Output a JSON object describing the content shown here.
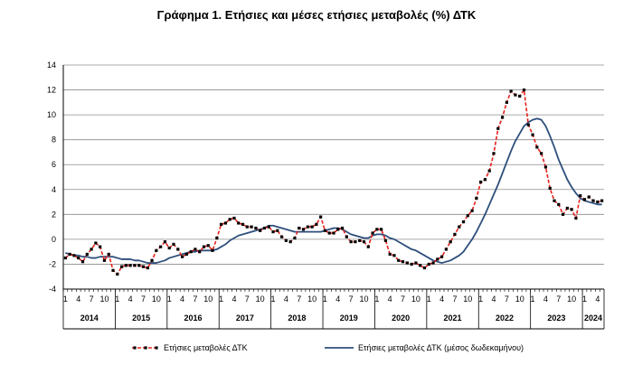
{
  "chart_data": {
    "type": "line",
    "title": "Γράφημα 1. Ετήσιες και μέσες ετήσιες μεταβολές (%) ΔΤΚ",
    "ylim": [
      -4,
      14
    ],
    "yticks": [
      -4,
      -2,
      0,
      2,
      4,
      6,
      8,
      10,
      12,
      14
    ],
    "month_tick_labels": [
      "1",
      "4",
      "7",
      "10"
    ],
    "years": [
      "2014",
      "2015",
      "2016",
      "2017",
      "2018",
      "2019",
      "2020",
      "2021",
      "2022",
      "2023",
      "2024"
    ],
    "grid": true,
    "legend_position": "bottom",
    "series": [
      {
        "name": "Ετήσιες μεταβολές ΔΤΚ",
        "style": "dashed-markers",
        "color": "#e8211d",
        "marker_color": "#000000",
        "values": [
          -1.5,
          -1.2,
          -1.3,
          -1.5,
          -1.8,
          -1.2,
          -0.8,
          -0.3,
          -0.6,
          -1.7,
          -1.2,
          -2.5,
          -2.8,
          -2.2,
          -2.1,
          -2.1,
          -2.1,
          -2.1,
          -2.2,
          -2.3,
          -1.7,
          -0.9,
          -0.6,
          -0.2,
          -0.7,
          -0.4,
          -0.8,
          -1.4,
          -1.2,
          -1.0,
          -0.8,
          -1.0,
          -0.6,
          -0.5,
          -0.9,
          0.1,
          1.2,
          1.3,
          1.6,
          1.7,
          1.3,
          1.2,
          1.0,
          1.0,
          0.9,
          0.7,
          0.9,
          1.0,
          0.6,
          0.7,
          0.2,
          -0.1,
          -0.2,
          0.1,
          0.9,
          0.8,
          1.0,
          1.0,
          1.2,
          1.8,
          0.7,
          0.5,
          0.5,
          0.8,
          0.9,
          0.2,
          -0.2,
          -0.2,
          -0.1,
          -0.2,
          -0.6,
          0.5,
          0.8,
          0.8,
          -0.1,
          -1.2,
          -1.3,
          -1.7,
          -1.8,
          -1.9,
          -2.0,
          -1.9,
          -2.1,
          -2.3,
          -2.0,
          -1.9,
          -1.6,
          -1.4,
          -0.8,
          -0.2,
          0.4,
          1.0,
          1.4,
          1.9,
          2.3,
          3.3,
          4.6,
          4.8,
          5.5,
          6.9,
          8.9,
          9.8,
          11.0,
          11.9,
          11.6,
          11.5,
          12.0,
          9.2,
          8.4,
          7.4,
          6.9,
          5.8,
          4.1,
          3.1,
          2.8,
          2.0,
          2.5,
          2.4,
          1.7,
          3.5,
          3.2,
          3.4,
          3.1,
          3.0,
          3.1
        ]
      },
      {
        "name": "Ετήσιες μεταβολές ΔΤΚ (μέσος δωδεκαμήνου)",
        "style": "solid",
        "color": "#2e4f7c",
        "values": [
          -1.1,
          -1.2,
          -1.3,
          -1.3,
          -1.4,
          -1.4,
          -1.5,
          -1.5,
          -1.4,
          -1.4,
          -1.4,
          -1.4,
          -1.5,
          -1.6,
          -1.6,
          -1.6,
          -1.7,
          -1.7,
          -1.8,
          -1.9,
          -1.9,
          -1.9,
          -1.8,
          -1.7,
          -1.5,
          -1.4,
          -1.3,
          -1.2,
          -1.1,
          -1.0,
          -1.0,
          -0.9,
          -0.9,
          -0.9,
          -0.9,
          -0.8,
          -0.6,
          -0.4,
          -0.1,
          0.1,
          0.3,
          0.4,
          0.5,
          0.6,
          0.7,
          0.8,
          0.9,
          1.1,
          1.1,
          1.0,
          0.9,
          0.8,
          0.7,
          0.6,
          0.6,
          0.6,
          0.6,
          0.6,
          0.6,
          0.6,
          0.7,
          0.8,
          0.9,
          0.9,
          0.8,
          0.6,
          0.4,
          0.3,
          0.2,
          0.1,
          0.1,
          0.3,
          0.4,
          0.4,
          0.3,
          0.1,
          0.0,
          -0.2,
          -0.4,
          -0.6,
          -0.8,
          -0.9,
          -1.1,
          -1.3,
          -1.5,
          -1.7,
          -1.8,
          -1.9,
          -1.8,
          -1.7,
          -1.5,
          -1.3,
          -1.0,
          -0.5,
          0.0,
          0.6,
          1.3,
          2.0,
          2.8,
          3.6,
          4.4,
          5.3,
          6.2,
          7.1,
          7.9,
          8.5,
          9.1,
          9.4,
          9.6,
          9.7,
          9.6,
          9.1,
          8.3,
          7.4,
          6.4,
          5.6,
          4.8,
          4.2,
          3.7,
          3.3,
          3.1,
          3.0,
          2.9,
          2.8,
          2.8
        ]
      }
    ]
  }
}
